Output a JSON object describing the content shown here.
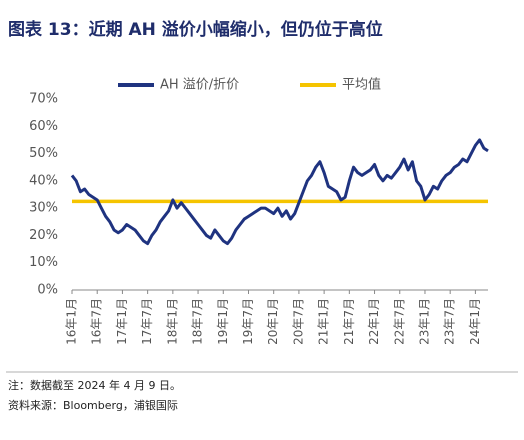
{
  "chart_data": {
    "type": "line",
    "title": "图表 13：近期 AH 溢价小幅缩小，但仍位于高位",
    "notes": [
      "注：数据截至 2024 年 4 月 9 日。",
      "资料来源：Bloomberg，浦银国际"
    ],
    "categories": [
      "16年1月",
      null,
      null,
      null,
      null,
      null,
      "16年7月",
      null,
      null,
      null,
      null,
      null,
      "17年1月",
      null,
      null,
      null,
      null,
      null,
      "17年7月",
      null,
      null,
      null,
      null,
      null,
      "18年1月",
      null,
      null,
      null,
      null,
      null,
      "18年7月",
      null,
      null,
      null,
      null,
      null,
      "19年1月",
      null,
      null,
      null,
      null,
      null,
      "19年7月",
      null,
      null,
      null,
      null,
      null,
      "20年1月",
      null,
      null,
      null,
      null,
      null,
      "20年7月",
      null,
      null,
      null,
      null,
      null,
      "21年1月",
      null,
      null,
      null,
      null,
      null,
      "21年7月",
      null,
      null,
      null,
      null,
      null,
      "22年1月",
      null,
      null,
      null,
      null,
      null,
      "22年7月",
      null,
      null,
      null,
      null,
      null,
      "23年1月",
      null,
      null,
      null,
      null,
      null,
      "23年7月",
      null,
      null,
      null,
      null,
      null,
      "24年1月",
      null,
      null,
      null
    ],
    "series": [
      {
        "name": "AH 溢价/折价",
        "color": "#1f3380",
        "values": [
          42,
          40,
          36,
          37,
          35,
          34,
          33,
          30,
          27,
          25,
          22,
          21,
          22,
          24,
          23,
          22,
          20,
          18,
          17,
          20,
          22,
          25,
          27,
          29,
          33,
          30,
          32,
          30,
          28,
          26,
          24,
          22,
          20,
          19,
          22,
          20,
          18,
          17,
          19,
          22,
          24,
          26,
          27,
          28,
          29,
          30,
          30,
          29,
          28,
          30,
          27,
          29,
          26,
          28,
          32,
          36,
          40,
          42,
          45,
          47,
          43,
          38,
          37,
          36,
          33,
          34,
          40,
          45,
          43,
          42,
          43,
          44,
          46,
          42,
          40,
          42,
          41,
          43,
          45,
          48,
          44,
          47,
          40,
          38,
          33,
          35,
          38,
          37,
          40,
          42,
          43,
          45,
          46,
          48,
          47,
          50,
          53,
          55,
          52,
          51
        ]
      },
      {
        "name": "平均值",
        "color": "#f5c400",
        "values": [
          32.5,
          32.5,
          32.5,
          32.5,
          32.5,
          32.5,
          32.5,
          32.5,
          32.5,
          32.5,
          32.5,
          32.5,
          32.5,
          32.5,
          32.5,
          32.5,
          32.5,
          32.5,
          32.5,
          32.5,
          32.5,
          32.5,
          32.5,
          32.5,
          32.5,
          32.5,
          32.5,
          32.5,
          32.5,
          32.5,
          32.5,
          32.5,
          32.5,
          32.5,
          32.5,
          32.5,
          32.5,
          32.5,
          32.5,
          32.5,
          32.5,
          32.5,
          32.5,
          32.5,
          32.5,
          32.5,
          32.5,
          32.5,
          32.5,
          32.5,
          32.5,
          32.5,
          32.5,
          32.5,
          32.5,
          32.5,
          32.5,
          32.5,
          32.5,
          32.5,
          32.5,
          32.5,
          32.5,
          32.5,
          32.5,
          32.5,
          32.5,
          32.5,
          32.5,
          32.5,
          32.5,
          32.5,
          32.5,
          32.5,
          32.5,
          32.5,
          32.5,
          32.5,
          32.5,
          32.5,
          32.5,
          32.5,
          32.5,
          32.5,
          32.5,
          32.5,
          32.5,
          32.5,
          32.5,
          32.5,
          32.5,
          32.5,
          32.5,
          32.5,
          32.5,
          32.5,
          32.5,
          32.5,
          32.5,
          32.5
        ]
      }
    ],
    "ylim": [
      0,
      70
    ],
    "yticks": [
      {
        "value": 0,
        "label": "0%"
      },
      {
        "value": 10,
        "label": "10%"
      },
      {
        "value": 20,
        "label": "20%"
      },
      {
        "value": 30,
        "label": "30%"
      },
      {
        "value": 40,
        "label": "40%"
      },
      {
        "value": 50,
        "label": "50%"
      },
      {
        "value": 60,
        "label": "60%"
      },
      {
        "value": 70,
        "label": "70%"
      }
    ],
    "grid": false
  }
}
